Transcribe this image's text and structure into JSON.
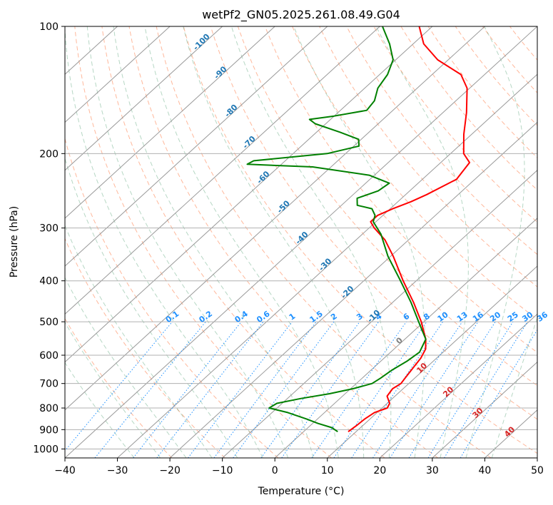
{
  "chart_data": {
    "type": "skew-t",
    "title": "wetPf2_GN05.2025.261.08.49.G04",
    "xlabel": "Temperature (°C)",
    "ylabel": "Pressure (hPa)",
    "xlim": [
      -40,
      50
    ],
    "ylim": [
      1050,
      100
    ],
    "x_ticks": [
      "−40",
      "−30",
      "−20",
      "−10",
      "0",
      "10",
      "20",
      "30",
      "40",
      "50"
    ],
    "x_tick_values": [
      -40,
      -30,
      -20,
      -10,
      0,
      10,
      20,
      30,
      40,
      50
    ],
    "y_ticks": [
      "100",
      "200",
      "300",
      "400",
      "500",
      "600",
      "700",
      "800",
      "900",
      "1000"
    ],
    "y_tick_values": [
      100,
      200,
      300,
      400,
      500,
      600,
      700,
      800,
      900,
      1000
    ],
    "isotherm_labels": [
      {
        "t": -100,
        "p": 110,
        "text": "-100"
      },
      {
        "t": -90,
        "p": 130,
        "text": "-90"
      },
      {
        "t": -80,
        "p": 160,
        "text": "-80"
      },
      {
        "t": -70,
        "p": 190,
        "text": "-70"
      },
      {
        "t": -60,
        "p": 230,
        "text": "-60"
      },
      {
        "t": -50,
        "p": 270,
        "text": "-50"
      },
      {
        "t": -40,
        "p": 320,
        "text": "-40"
      },
      {
        "t": -30,
        "p": 370,
        "text": "-30"
      },
      {
        "t": -20,
        "p": 430,
        "text": "-20"
      },
      {
        "t": -10,
        "p": 490,
        "text": "-10"
      },
      {
        "t": 0,
        "p": 560,
        "text": "0"
      },
      {
        "t": 10,
        "p": 650,
        "text": "10"
      },
      {
        "t": 20,
        "p": 740,
        "text": "20"
      },
      {
        "t": 30,
        "p": 830,
        "text": "30"
      },
      {
        "t": 40,
        "p": 920,
        "text": "40"
      }
    ],
    "mixing_ratio_labels": [
      "0.1",
      "0.2",
      "0.4",
      "0.6",
      "1",
      "1.5",
      "2",
      "3",
      "4",
      "6",
      "8",
      "10",
      "13",
      "16",
      "20",
      "25",
      "30",
      "36"
    ],
    "mixing_ratio_values": [
      0.1,
      0.2,
      0.4,
      0.6,
      1,
      1.5,
      2,
      3,
      4,
      6,
      8,
      10,
      13,
      16,
      20,
      25,
      30,
      36
    ],
    "series": [
      {
        "name": "Temperature",
        "color": "#ff0000",
        "points": [
          [
            910,
            8.5
          ],
          [
            880,
            8.8
          ],
          [
            850,
            9.0
          ],
          [
            820,
            9.5
          ],
          [
            800,
            11.0
          ],
          [
            780,
            10.5
          ],
          [
            750,
            8.5
          ],
          [
            720,
            8.0
          ],
          [
            700,
            8.5
          ],
          [
            670,
            8.0
          ],
          [
            640,
            7.5
          ],
          [
            610,
            7.0
          ],
          [
            580,
            6.0
          ],
          [
            550,
            4.0
          ],
          [
            500,
            -0.5
          ],
          [
            450,
            -6.0
          ],
          [
            400,
            -12.5
          ],
          [
            350,
            -19.5
          ],
          [
            320,
            -24.5
          ],
          [
            300,
            -29.0
          ],
          [
            290,
            -31.0
          ],
          [
            280,
            -31.0
          ],
          [
            270,
            -29.5
          ],
          [
            260,
            -27.5
          ],
          [
            250,
            -26.0
          ],
          [
            230,
            -23.5
          ],
          [
            210,
            -24.5
          ],
          [
            200,
            -27.5
          ],
          [
            180,
            -31.5
          ],
          [
            160,
            -35.5
          ],
          [
            140,
            -40.5
          ],
          [
            130,
            -44.5
          ],
          [
            120,
            -52.0
          ],
          [
            110,
            -58.0
          ],
          [
            100,
            -62.5
          ]
        ]
      },
      {
        "name": "Dewpoint",
        "color": "#008000",
        "points": [
          [
            910,
            6.5
          ],
          [
            890,
            4.5
          ],
          [
            870,
            1.0
          ],
          [
            850,
            -2.0
          ],
          [
            820,
            -7.0
          ],
          [
            800,
            -11.5
          ],
          [
            780,
            -11.0
          ],
          [
            760,
            -7.5
          ],
          [
            740,
            -3.0
          ],
          [
            720,
            0.5
          ],
          [
            700,
            3.0
          ],
          [
            680,
            3.5
          ],
          [
            650,
            4.0
          ],
          [
            620,
            5.0
          ],
          [
            590,
            5.5
          ],
          [
            550,
            4.0
          ],
          [
            500,
            -1.0
          ],
          [
            450,
            -6.5
          ],
          [
            400,
            -13.0
          ],
          [
            350,
            -20.5
          ],
          [
            310,
            -26.5
          ],
          [
            290,
            -30.5
          ],
          [
            280,
            -31.5
          ],
          [
            270,
            -33.5
          ],
          [
            265,
            -37.0
          ],
          [
            255,
            -38.5
          ],
          [
            245,
            -36.0
          ],
          [
            235,
            -35.5
          ],
          [
            225,
            -41.0
          ],
          [
            215,
            -53.5
          ],
          [
            212,
            -66.5
          ],
          [
            208,
            -66.0
          ],
          [
            200,
            -53.5
          ],
          [
            192,
            -49.0
          ],
          [
            185,
            -50.5
          ],
          [
            178,
            -55.5
          ],
          [
            170,
            -62.0
          ],
          [
            166,
            -64.0
          ],
          [
            163,
            -60.0
          ],
          [
            158,
            -55.0
          ],
          [
            150,
            -55.5
          ],
          [
            140,
            -57.5
          ],
          [
            130,
            -58.5
          ],
          [
            120,
            -60.5
          ],
          [
            110,
            -64.5
          ],
          [
            100,
            -69.5
          ]
        ]
      }
    ]
  }
}
